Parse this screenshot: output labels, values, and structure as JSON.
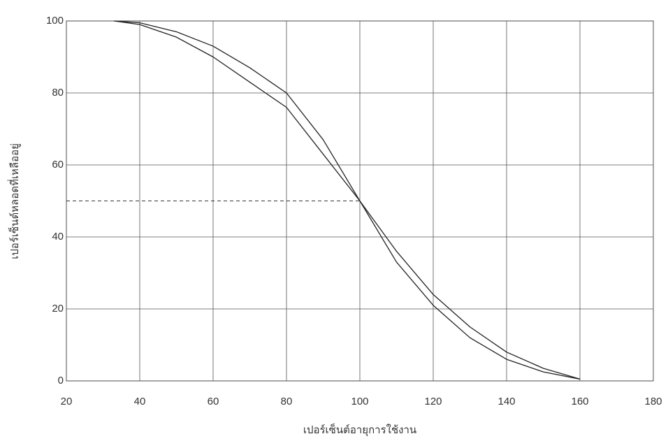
{
  "chart_data": {
    "type": "line",
    "x_label": "เปอร์เซ็นต์อายุการใช้งาน",
    "y_label": "เปอร์เซ็นต์หลอดที่เหลืออยู่",
    "x": [
      33,
      40,
      50,
      60,
      70,
      80,
      90,
      100,
      110,
      120,
      130,
      140,
      150,
      160
    ],
    "series": [
      {
        "color": "#222222",
        "values": [
          100,
          99.5,
          97,
          93,
          87,
          80,
          67,
          50,
          33,
          21,
          12,
          6,
          2.5,
          0.5
        ]
      },
      {
        "color": "#222222",
        "values": [
          100,
          99,
          95.5,
          90,
          83,
          76,
          63,
          50,
          36,
          24,
          15,
          8,
          3.5,
          0.5
        ]
      }
    ],
    "reference_line": {
      "y": 50,
      "x": [
        20,
        100
      ]
    },
    "xlim": [
      20,
      180
    ],
    "xticks": [
      20,
      40,
      60,
      80,
      100,
      120,
      140,
      160,
      180
    ],
    "ylim": [
      0,
      100
    ],
    "yticks": [
      0,
      20,
      40,
      60,
      80,
      100
    ],
    "grid": true
  }
}
